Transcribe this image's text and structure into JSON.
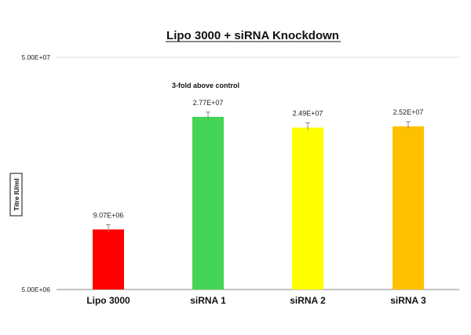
{
  "chart_data": {
    "type": "bar",
    "title": "Lipo 3000 + siRNA Knockdown",
    "ylabel": "Titre IU/ml",
    "xlabel": "",
    "yscale": "log",
    "ylim": [
      5000000,
      50000000
    ],
    "yticks": [
      {
        "value": 5000000,
        "label": "5.00E+06"
      },
      {
        "value": 50000000,
        "label": "5.00E+07"
      }
    ],
    "categories": [
      "Lipo 3000",
      "siRNA 1",
      "siRNA 2",
      "siRNA 3"
    ],
    "values": [
      9070000,
      27700000,
      24900000,
      25200000
    ],
    "value_labels": [
      "9.07E+06",
      "2.77E+07",
      "2.49E+07",
      "2.52E+07"
    ],
    "colors": [
      "#ff0000",
      "#44d456",
      "#ffff00",
      "#ffc000"
    ],
    "annotation": "3-fold above control",
    "grid": true,
    "error_bars": true
  }
}
